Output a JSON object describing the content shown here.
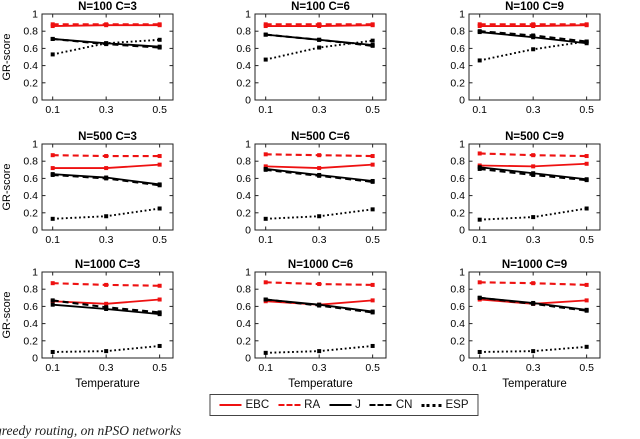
{
  "figure": {
    "caption_fragment": "greedy routing, on nPSO networks"
  },
  "chart_data": {
    "type": "line",
    "x": [
      0.1,
      0.3,
      0.5
    ],
    "xticks": [
      "0.1",
      "0.3",
      "0.5"
    ],
    "yticks": [
      "0",
      "0.2",
      "0.4",
      "0.6",
      "0.8",
      "1"
    ],
    "ytick_values": [
      0,
      0.2,
      0.4,
      0.6,
      0.8,
      1
    ],
    "xlim": [
      0.06,
      0.55
    ],
    "ylim": [
      0,
      1
    ],
    "xlabel": "Temperature",
    "ylabel": "GR-score",
    "grid_lines": false,
    "legend_position": "bottom",
    "colors": {
      "red": "#ee1111",
      "black": "#000000",
      "axis": "#222222"
    },
    "legend": [
      {
        "name": "EBC",
        "color": "#ee1111",
        "style": "solid"
      },
      {
        "name": "RA",
        "color": "#ee1111",
        "style": "dashed"
      },
      {
        "name": "J",
        "color": "#000000",
        "style": "solid"
      },
      {
        "name": "CN",
        "color": "#000000",
        "style": "dashed"
      },
      {
        "name": "ESP",
        "color": "#000000",
        "style": "dotted"
      }
    ],
    "subplots": [
      {
        "title": "N=100 C=3",
        "series": [
          {
            "name": "EBC",
            "values": [
              0.86,
              0.87,
              0.87
            ]
          },
          {
            "name": "RA",
            "values": [
              0.88,
              0.88,
              0.88
            ]
          },
          {
            "name": "J",
            "values": [
              0.71,
              0.66,
              0.62
            ]
          },
          {
            "name": "CN",
            "values": [
              0.71,
              0.65,
              0.61
            ]
          },
          {
            "name": "ESP",
            "values": [
              0.53,
              0.66,
              0.7
            ]
          }
        ]
      },
      {
        "title": "N=100 C=6",
        "series": [
          {
            "name": "EBC",
            "values": [
              0.86,
              0.86,
              0.87
            ]
          },
          {
            "name": "RA",
            "values": [
              0.88,
              0.88,
              0.88
            ]
          },
          {
            "name": "J",
            "values": [
              0.76,
              0.7,
              0.64
            ]
          },
          {
            "name": "CN",
            "values": [
              0.76,
              0.7,
              0.63
            ]
          },
          {
            "name": "ESP",
            "values": [
              0.47,
              0.61,
              0.69
            ]
          }
        ]
      },
      {
        "title": "N=100 C=9",
        "series": [
          {
            "name": "EBC",
            "values": [
              0.86,
              0.86,
              0.87
            ]
          },
          {
            "name": "RA",
            "values": [
              0.88,
              0.88,
              0.88
            ]
          },
          {
            "name": "J",
            "values": [
              0.79,
              0.73,
              0.66
            ]
          },
          {
            "name": "CN",
            "values": [
              0.8,
              0.75,
              0.68
            ]
          },
          {
            "name": "ESP",
            "values": [
              0.46,
              0.59,
              0.68
            ]
          }
        ]
      },
      {
        "title": "N=500 C=3",
        "series": [
          {
            "name": "EBC",
            "values": [
              0.72,
              0.72,
              0.76
            ]
          },
          {
            "name": "RA",
            "values": [
              0.87,
              0.86,
              0.86
            ]
          },
          {
            "name": "J",
            "values": [
              0.65,
              0.61,
              0.53
            ]
          },
          {
            "name": "CN",
            "values": [
              0.64,
              0.6,
              0.52
            ]
          },
          {
            "name": "ESP",
            "values": [
              0.13,
              0.16,
              0.25
            ]
          }
        ]
      },
      {
        "title": "N=500 C=6",
        "series": [
          {
            "name": "EBC",
            "values": [
              0.74,
              0.72,
              0.76
            ]
          },
          {
            "name": "RA",
            "values": [
              0.88,
              0.87,
              0.86
            ]
          },
          {
            "name": "J",
            "values": [
              0.71,
              0.64,
              0.57
            ]
          },
          {
            "name": "CN",
            "values": [
              0.7,
              0.63,
              0.56
            ]
          },
          {
            "name": "ESP",
            "values": [
              0.13,
              0.16,
              0.24
            ]
          }
        ]
      },
      {
        "title": "N=500 C=9",
        "series": [
          {
            "name": "EBC",
            "values": [
              0.75,
              0.74,
              0.77
            ]
          },
          {
            "name": "RA",
            "values": [
              0.89,
              0.87,
              0.86
            ]
          },
          {
            "name": "J",
            "values": [
              0.73,
              0.66,
              0.59
            ]
          },
          {
            "name": "CN",
            "values": [
              0.71,
              0.64,
              0.58
            ]
          },
          {
            "name": "ESP",
            "values": [
              0.12,
              0.15,
              0.25
            ]
          }
        ]
      },
      {
        "title": "N=1000 C=3",
        "series": [
          {
            "name": "EBC",
            "values": [
              0.66,
              0.63,
              0.68
            ]
          },
          {
            "name": "RA",
            "values": [
              0.87,
              0.85,
              0.84
            ]
          },
          {
            "name": "J",
            "values": [
              0.62,
              0.57,
              0.51
            ]
          },
          {
            "name": "CN",
            "values": [
              0.67,
              0.59,
              0.53
            ]
          },
          {
            "name": "ESP",
            "values": [
              0.07,
              0.08,
              0.14
            ]
          }
        ]
      },
      {
        "title": "N=1000 C=6",
        "series": [
          {
            "name": "EBC",
            "values": [
              0.66,
              0.62,
              0.67
            ]
          },
          {
            "name": "RA",
            "values": [
              0.88,
              0.86,
              0.85
            ]
          },
          {
            "name": "J",
            "values": [
              0.68,
              0.62,
              0.54
            ]
          },
          {
            "name": "CN",
            "values": [
              0.68,
              0.61,
              0.53
            ]
          },
          {
            "name": "ESP",
            "values": [
              0.06,
              0.08,
              0.14
            ]
          }
        ]
      },
      {
        "title": "N=1000 C=9",
        "series": [
          {
            "name": "EBC",
            "values": [
              0.68,
              0.63,
              0.67
            ]
          },
          {
            "name": "RA",
            "values": [
              0.88,
              0.87,
              0.85
            ]
          },
          {
            "name": "J",
            "values": [
              0.7,
              0.64,
              0.56
            ]
          },
          {
            "name": "CN",
            "values": [
              0.7,
              0.63,
              0.55
            ]
          },
          {
            "name": "ESP",
            "values": [
              0.07,
              0.08,
              0.13
            ]
          }
        ]
      }
    ]
  }
}
